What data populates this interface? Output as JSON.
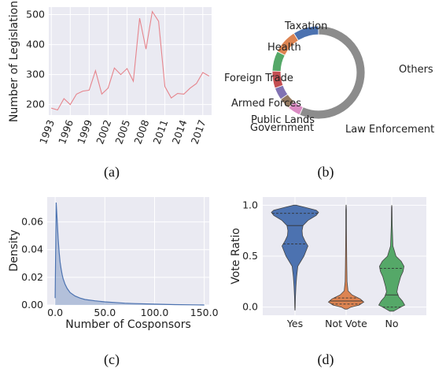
{
  "chart_data": [
    {
      "type": "line",
      "ylabel": "Number of Legislation",
      "xlabel": "",
      "caption": "(a)",
      "x": [
        1993,
        1994,
        1995,
        1996,
        1997,
        1998,
        1999,
        2000,
        2001,
        2002,
        2003,
        2004,
        2005,
        2006,
        2007,
        2008,
        2009,
        2010,
        2011,
        2012,
        2013,
        2014,
        2015,
        2016,
        2017,
        2018
      ],
      "values": [
        188,
        182,
        220,
        200,
        235,
        245,
        248,
        313,
        235,
        255,
        322,
        300,
        320,
        278,
        488,
        385,
        510,
        478,
        260,
        222,
        237,
        235,
        255,
        270,
        307,
        295
      ],
      "xticks": [
        "1993",
        "1996",
        "1999",
        "2002",
        "2005",
        "2008",
        "2011",
        "2014",
        "2017"
      ],
      "yticks": [
        "200",
        "300",
        "400",
        "500"
      ],
      "ylim": [
        165,
        525
      ],
      "xlim": [
        1992.6,
        2018.4
      ],
      "grid": true,
      "color": "#e6848c"
    },
    {
      "type": "pie",
      "caption": "(b)",
      "donut": true,
      "labels": [
        "Taxation",
        "Health",
        "Foreign Trade",
        "Armed Forces",
        "Public Lands",
        "Government",
        "Law Enforcement",
        "Others"
      ],
      "values": [
        9,
        8.5,
        7,
        6,
        4.3,
        4,
        4.5,
        56.7
      ],
      "colors": [
        "#4c72b0",
        "#dd8452",
        "#55a868",
        "#c44e52",
        "#8172b3",
        "#937860",
        "#da8bc3",
        "#8c8c8c"
      ]
    },
    {
      "type": "area",
      "ylabel": "Density",
      "xlabel": "Number of Cosponsors",
      "caption": "(c)",
      "x": [
        0,
        1,
        2,
        3,
        4,
        5,
        6,
        7,
        8,
        10,
        12,
        15,
        20,
        25,
        30,
        40,
        50,
        60,
        70,
        80,
        100,
        120,
        140,
        150
      ],
      "values": [
        0.005,
        0.074,
        0.062,
        0.048,
        0.038,
        0.031,
        0.026,
        0.022,
        0.019,
        0.015,
        0.012,
        0.009,
        0.0065,
        0.005,
        0.004,
        0.003,
        0.0023,
        0.0018,
        0.0013,
        0.001,
        0.0006,
        0.0003,
        0.0001,
        0
      ],
      "xticks": [
        "0.0",
        "50.0",
        "100.0",
        "150.0"
      ],
      "yticks": [
        "0.00",
        "0.02",
        "0.04",
        "0.06"
      ],
      "xlim": [
        -8,
        155
      ],
      "ylim": [
        0,
        0.078
      ],
      "grid": true,
      "color": "#4c72b0"
    },
    {
      "type": "violin",
      "ylabel": "Vote Ratio",
      "xlabel": "",
      "caption": "(d)",
      "categories": [
        "Yes",
        "Not Vote",
        "No"
      ],
      "colors": [
        "#4c72b0",
        "#dd8452",
        "#55a868"
      ],
      "yticks": [
        "0.0",
        "0.5",
        "1.0"
      ],
      "ylim": [
        -0.08,
        1.08
      ],
      "grid": true,
      "profiles": [
        [
          [
            -0.03,
            0.004
          ],
          [
            0,
            0.01
          ],
          [
            0.1,
            0.02
          ],
          [
            0.2,
            0.04
          ],
          [
            0.3,
            0.07
          ],
          [
            0.4,
            0.12
          ],
          [
            0.5,
            0.38
          ],
          [
            0.6,
            0.55
          ],
          [
            0.65,
            0.42
          ],
          [
            0.7,
            0.32
          ],
          [
            0.75,
            0.3
          ],
          [
            0.8,
            0.34
          ],
          [
            0.85,
            0.55
          ],
          [
            0.9,
            0.9
          ],
          [
            0.93,
            1
          ],
          [
            0.95,
            0.9
          ],
          [
            0.98,
            0.4
          ],
          [
            1.0,
            0.05
          ]
        ],
        [
          [
            -0.02,
            0.05
          ],
          [
            0,
            0.2
          ],
          [
            0.02,
            0.55
          ],
          [
            0.05,
            0.75
          ],
          [
            0.08,
            0.6
          ],
          [
            0.12,
            0.25
          ],
          [
            0.16,
            0.08
          ],
          [
            0.25,
            0.04
          ],
          [
            0.4,
            0.03
          ],
          [
            0.6,
            0.02
          ],
          [
            0.8,
            0.015
          ],
          [
            0.95,
            0.015
          ],
          [
            1.0,
            0.005
          ]
        ],
        [
          [
            -0.04,
            0.08
          ],
          [
            0,
            0.38
          ],
          [
            0.02,
            0.55
          ],
          [
            0.06,
            0.45
          ],
          [
            0.1,
            0.3
          ],
          [
            0.15,
            0.22
          ],
          [
            0.2,
            0.26
          ],
          [
            0.25,
            0.32
          ],
          [
            0.3,
            0.38
          ],
          [
            0.35,
            0.48
          ],
          [
            0.4,
            0.52
          ],
          [
            0.45,
            0.4
          ],
          [
            0.5,
            0.18
          ],
          [
            0.6,
            0.05
          ],
          [
            0.8,
            0.02
          ],
          [
            0.98,
            0.01
          ],
          [
            1.0,
            0
          ]
        ]
      ],
      "medians": [
        0.8,
        0.06,
        0.12
      ],
      "quartiles": [
        [
          0.62,
          0.92
        ],
        [
          0.03,
          0.09
        ],
        [
          0.0,
          0.38
        ]
      ]
    }
  ]
}
